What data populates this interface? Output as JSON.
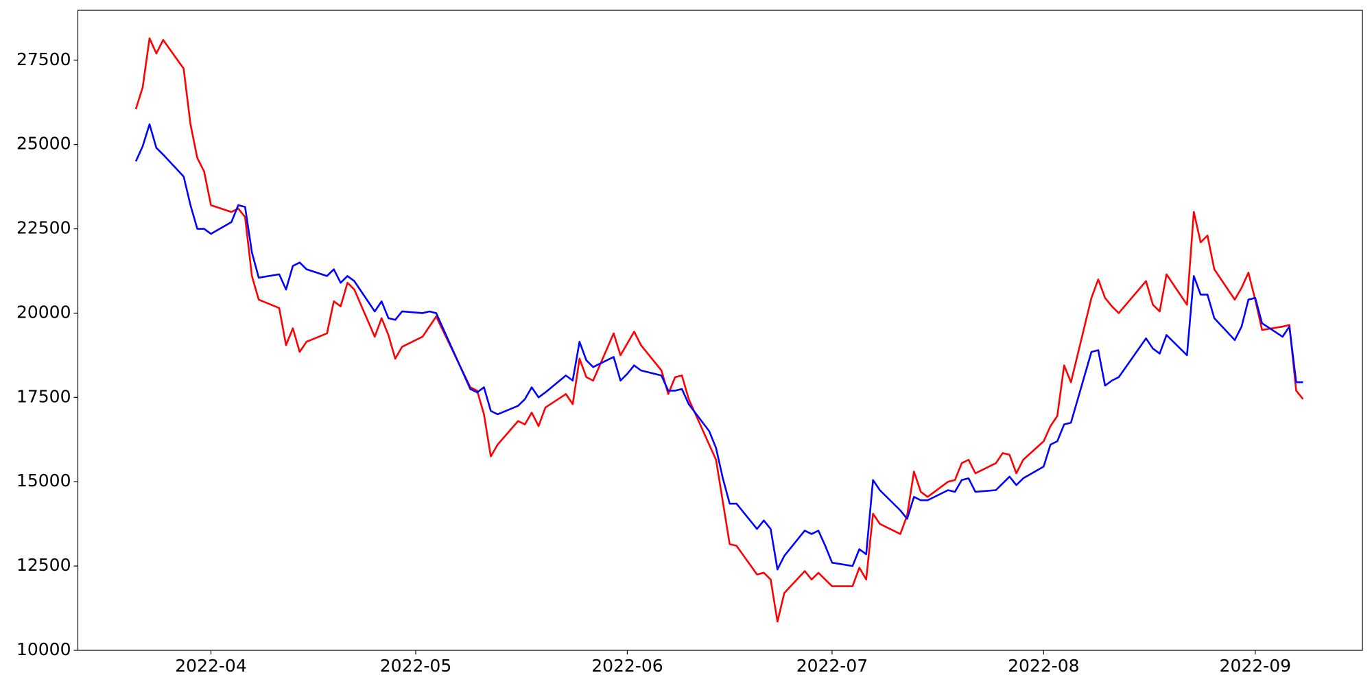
{
  "chart_data": {
    "type": "line",
    "x": [
      80,
      81,
      82,
      83,
      84,
      87,
      88,
      89,
      90,
      91,
      94,
      95,
      96,
      97,
      98,
      101,
      102,
      103,
      104,
      105,
      108,
      109,
      110,
      111,
      112,
      115,
      116,
      117,
      118,
      119,
      122,
      123,
      124,
      129,
      130,
      131,
      132,
      133,
      136,
      137,
      138,
      139,
      140,
      143,
      144,
      145,
      146,
      147,
      150,
      151,
      152,
      153,
      154,
      157,
      158,
      159,
      160,
      161,
      164,
      165,
      166,
      167,
      168,
      171,
      172,
      173,
      174,
      175,
      178,
      179,
      180,
      181,
      182,
      185,
      186,
      187,
      188,
      189,
      192,
      193,
      194,
      195,
      196,
      199,
      200,
      201,
      202,
      203,
      206,
      207,
      208,
      209,
      210,
      213,
      214,
      215,
      216,
      217,
      220,
      221,
      222,
      223,
      224,
      228,
      229,
      230,
      231,
      234,
      235,
      236,
      237,
      238,
      241,
      242,
      243,
      244,
      245,
      248,
      249,
      250,
      251
    ],
    "series": [
      {
        "color": "#ff0000",
        "values": [
          26050,
          26700,
          28150,
          27700,
          28100,
          27250,
          25600,
          24600,
          24200,
          23200,
          23000,
          23100,
          22850,
          21100,
          20400,
          20150,
          19050,
          19550,
          18850,
          19150,
          19400,
          20350,
          20200,
          20900,
          20700,
          19300,
          19850,
          19350,
          18650,
          19000,
          19300,
          19600,
          19900,
          17800,
          17700,
          17000,
          15750,
          16100,
          16800,
          16700,
          17050,
          16650,
          17200,
          17600,
          17300,
          18650,
          18100,
          18000,
          19400,
          18750,
          19100,
          19450,
          19050,
          18300,
          17600,
          18100,
          18150,
          17450,
          16100,
          15650,
          14400,
          13150,
          13100,
          12250,
          12300,
          12100,
          10850,
          11700,
          12350,
          12100,
          12300,
          12100,
          11900,
          11900,
          12450,
          12100,
          14050,
          13750,
          13450,
          14000,
          15300,
          14700,
          14550,
          15000,
          15050,
          15550,
          15650,
          15250,
          15550,
          15850,
          15800,
          15250,
          15650,
          16200,
          16650,
          16950,
          18450,
          17950,
          20450,
          21000,
          20450,
          20200,
          20000,
          20950,
          20250,
          20050,
          21150,
          20250,
          23000,
          22100,
          22300,
          21300,
          20400,
          20750,
          21200,
          20400,
          19500,
          19600,
          19650,
          17700,
          17450
        ]
      },
      {
        "color": "#0000ff",
        "values": [
          24500,
          24950,
          25600,
          24900,
          24700,
          24050,
          23200,
          22500,
          22500,
          22350,
          22700,
          23200,
          23150,
          21800,
          21050,
          21150,
          20700,
          21400,
          21500,
          21300,
          21100,
          21300,
          20900,
          21100,
          20950,
          20050,
          20350,
          19850,
          19800,
          20050,
          20000,
          20050,
          20000,
          17750,
          17650,
          17800,
          17100,
          17000,
          17250,
          17450,
          17800,
          17500,
          17650,
          18150,
          18000,
          19150,
          18600,
          18400,
          18700,
          18000,
          18200,
          18450,
          18300,
          18150,
          17700,
          17700,
          17750,
          17300,
          16500,
          16000,
          15100,
          14350,
          14350,
          13600,
          13850,
          13600,
          12400,
          12800,
          13550,
          13450,
          13550,
          13100,
          12600,
          12500,
          13000,
          12850,
          15050,
          14750,
          14150,
          13900,
          14550,
          14450,
          14450,
          14750,
          14700,
          15050,
          15100,
          14700,
          14750,
          14950,
          15150,
          14900,
          15100,
          15450,
          16100,
          16200,
          16700,
          16750,
          18850,
          18900,
          17850,
          18000,
          18100,
          19250,
          18950,
          18800,
          19350,
          18750,
          21100,
          20550,
          20550,
          19850,
          19200,
          19600,
          20400,
          20450,
          19700,
          19300,
          19600,
          17950,
          17950
        ]
      }
    ],
    "xlim": [
      71.5,
      259.7
    ],
    "xticks": [
      {
        "value": 91,
        "label": "2022-04"
      },
      {
        "value": 121,
        "label": "2022-05"
      },
      {
        "value": 152,
        "label": "2022-06"
      },
      {
        "value": 182,
        "label": "2022-07"
      },
      {
        "value": 213,
        "label": "2022-08"
      },
      {
        "value": 244,
        "label": "2022-09"
      }
    ],
    "ylim": [
      10000,
      28980
    ],
    "yticks": [
      10000,
      12500,
      15000,
      17500,
      20000,
      22500,
      25000,
      27500
    ]
  }
}
